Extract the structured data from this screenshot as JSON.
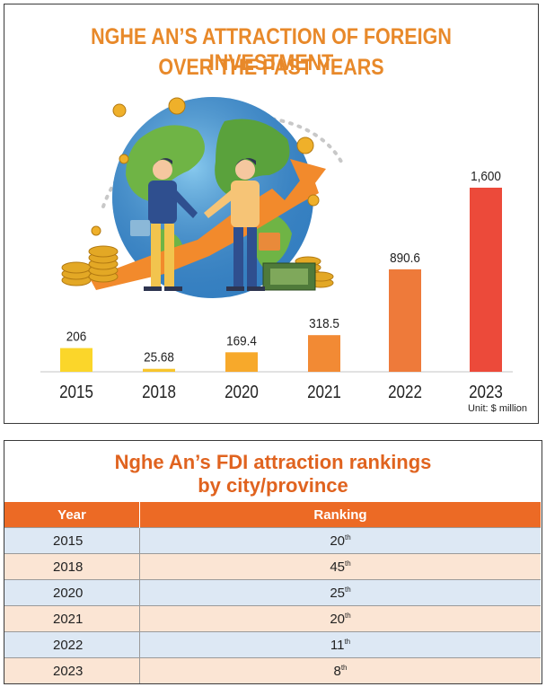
{
  "header": {
    "title_line1": "NGHE AN’S ATTRACTION OF FOREIGN INVESTMENT",
    "title_line2": "OVER THE PAST YEARS"
  },
  "chart_data": {
    "type": "bar",
    "title": "NGHE AN’S ATTRACTION OF FOREIGN INVESTMENT OVER THE PAST YEARS",
    "categories": [
      "2015",
      "2018",
      "2020",
      "2021",
      "2022",
      "2023"
    ],
    "values": [
      206,
      25.68,
      169.4,
      318.5,
      890.6,
      1600
    ],
    "value_labels": [
      "206",
      "25.68",
      "169.4",
      "318.5",
      "890.6",
      "1,600"
    ],
    "unit_label": "Unit: $ million",
    "ylim": [
      0,
      1600
    ],
    "grid": false,
    "legend": "none",
    "bar_colors": [
      "#fbd62a",
      "#f8c52c",
      "#f7a92b",
      "#f28a34",
      "#ee7a3a",
      "#ec4a3a"
    ]
  },
  "rankings": {
    "title_line1": "Nghe An’s FDI attraction rankings",
    "title_line2": "by city/province",
    "columns": [
      "Year",
      "Ranking"
    ],
    "rows": [
      {
        "year": "2015",
        "rank": "20",
        "suffix": "th"
      },
      {
        "year": "2018",
        "rank": "45",
        "suffix": "th"
      },
      {
        "year": "2020",
        "rank": "25",
        "suffix": "th"
      },
      {
        "year": "2021",
        "rank": "20",
        "suffix": "th"
      },
      {
        "year": "2022",
        "rank": "11",
        "suffix": "th"
      },
      {
        "year": "2023",
        "rank": "8",
        "suffix": "th"
      }
    ],
    "header_color": "#ec6a25",
    "row_colors": [
      "#dde8f4",
      "#fbe5d4"
    ]
  }
}
